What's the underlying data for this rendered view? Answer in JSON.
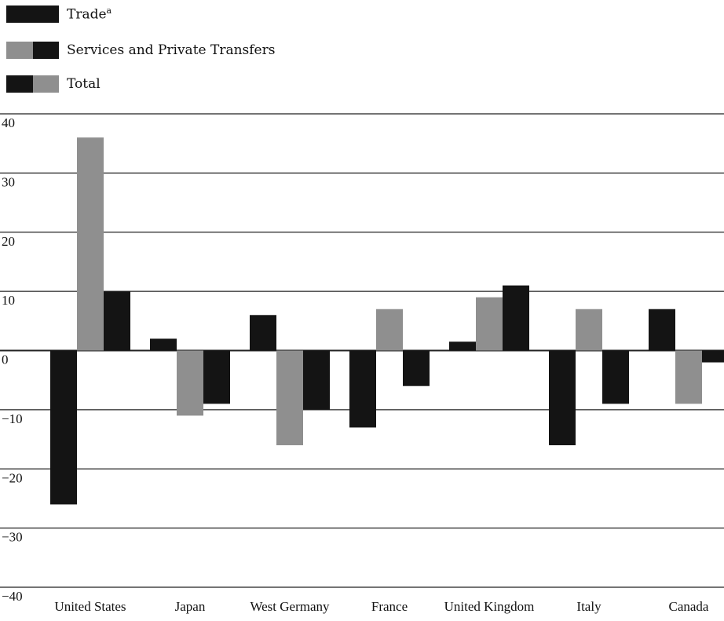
{
  "legend": {
    "items": [
      {
        "label": "Trade",
        "superscript": "a",
        "swatch": [
          "dark",
          "dark"
        ]
      },
      {
        "label": "Services and Private Transfers",
        "superscript": "",
        "swatch": [
          "gray",
          "dark"
        ]
      },
      {
        "label": "Total",
        "superscript": "",
        "swatch": [
          "dark",
          "gray"
        ]
      }
    ]
  },
  "colors": {
    "dark": "#141414",
    "gray": "#8f8f8f",
    "grid": "#222222"
  },
  "chart_data": {
    "type": "bar",
    "title": "",
    "xlabel": "",
    "ylabel": "",
    "ylim": [
      -40,
      40
    ],
    "yticks": [
      40,
      30,
      20,
      10,
      0,
      -10,
      -20,
      -30,
      -40
    ],
    "ytick_labels": [
      "40",
      "30",
      "20",
      "10",
      "0",
      "−10",
      "−20",
      "−30",
      "−40"
    ],
    "categories": [
      "United States",
      "Japan",
      "West Germany",
      "France",
      "United Kingdom",
      "Italy",
      "Canada"
    ],
    "series": [
      {
        "name": "Trade",
        "values": [
          -26,
          2,
          6,
          -13,
          1.5,
          -16,
          7
        ]
      },
      {
        "name": "Services and Private Transfers",
        "values": [
          36,
          -11,
          -16,
          7,
          9,
          7,
          -9
        ]
      },
      {
        "name": "Total",
        "values": [
          10,
          -9,
          -10,
          -6,
          11,
          -9,
          -2
        ]
      }
    ],
    "grid": true,
    "legend_position": "top-left"
  }
}
